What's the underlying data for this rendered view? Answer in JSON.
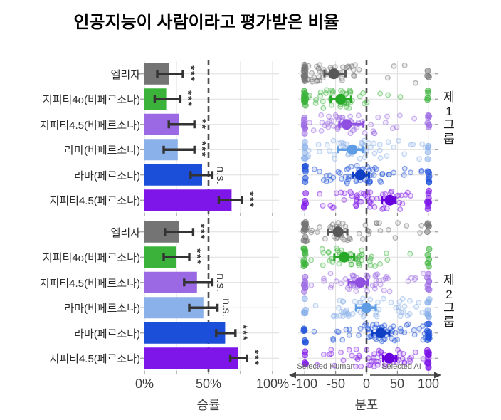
{
  "title": "인공지능이 사람이라고 평가받은 비율",
  "categories": [
    "엘리자",
    "지피티4o(비페르소나)",
    "지피티4.5(비페르소나)",
    "라마(비페르소나)",
    "라마(페르소나)",
    "지피티4.5(페르소나)"
  ],
  "group_labels": [
    "제1그룹",
    "제2그룹"
  ],
  "colors": {
    "bars": [
      "#747474",
      "#3bb33b",
      "#9b69e3",
      "#8ab1ea",
      "#1b4ed9",
      "#7e16e9"
    ],
    "means": [
      "#585858",
      "#27a827",
      "#8f4fe0",
      "#5f9ce6",
      "#0f3fc4",
      "#6800dd"
    ],
    "error": "#333333",
    "grid": "#dedede",
    "dashed": "#4d4d4d",
    "axis_text": "#3f3f3f",
    "tick_mark": "#9a9a9a",
    "arrow": "#444444"
  },
  "chart_data": [
    {
      "type": "bar",
      "title": "",
      "xlabel": "승률",
      "xlim": [
        0,
        100
      ],
      "xticks": [
        {
          "value": 0,
          "label": "0%"
        },
        {
          "value": 50,
          "label": "50%"
        },
        {
          "value": 100,
          "label": "100%"
        }
      ],
      "gridline_values": [
        0,
        25,
        50,
        75,
        100
      ],
      "dashed_line_x": 50,
      "groups": [
        {
          "name": "제1그룹",
          "values": [
            19,
            17,
            27,
            26,
            45,
            68
          ],
          "ci_low": [
            10,
            8,
            19,
            15,
            36,
            58
          ],
          "ci_high": [
            30,
            28,
            39,
            39,
            53,
            76
          ],
          "significance": [
            "***",
            "***",
            "**",
            "***",
            "n.s.",
            "***"
          ]
        },
        {
          "name": "제2그룹",
          "values": [
            27,
            25,
            41,
            46,
            63,
            73
          ],
          "ci_low": [
            16,
            15,
            31,
            35,
            56,
            67
          ],
          "ci_high": [
            38,
            35,
            53,
            57,
            71,
            80
          ],
          "significance": [
            "***",
            "***",
            "n.s.",
            "n.s.",
            "***",
            "***"
          ]
        }
      ]
    },
    {
      "type": "scatter",
      "title": "",
      "xlabel": "분포",
      "xlim": [
        -100,
        100
      ],
      "xticks": [
        {
          "value": -100,
          "label": "-100"
        },
        {
          "value": -50,
          "label": "-50"
        },
        {
          "value": 0,
          "label": "0"
        },
        {
          "value": 50,
          "label": "50"
        },
        {
          "value": 100,
          "label": "100"
        }
      ],
      "gridline_values": [
        -100,
        -50,
        0,
        50,
        100
      ],
      "dashed_line_x": 0,
      "direction_labels": {
        "left": "Selected Human",
        "right": "Selected AI"
      },
      "groups": [
        {
          "name": "제1그룹",
          "means": [
            -53,
            -42,
            -32,
            -23,
            -10,
            38
          ],
          "ci_low": [
            -68,
            -58,
            -44,
            -46,
            -22,
            25
          ],
          "ci_high": [
            -34,
            -25,
            -5,
            -6,
            4,
            47
          ],
          "jitter": [
            {
              "n": 46,
              "center": -55,
              "spread": 50,
              "edge_left": 14,
              "edge_right": 3
            },
            {
              "n": 42,
              "center": -45,
              "spread": 55,
              "edge_left": 12,
              "edge_right": 4
            },
            {
              "n": 50,
              "center": -25,
              "spread": 70,
              "edge_left": 8,
              "edge_right": 6
            },
            {
              "n": 48,
              "center": -20,
              "spread": 70,
              "edge_left": 6,
              "edge_right": 4
            },
            {
              "n": 55,
              "center": -15,
              "spread": 70,
              "edge_left": 7,
              "edge_right": 6
            },
            {
              "n": 55,
              "center": 10,
              "spread": 75,
              "edge_left": 5,
              "edge_right": 9
            }
          ]
        },
        {
          "name": "제2그룹",
          "means": [
            -46,
            -36,
            -10,
            0,
            23,
            37
          ],
          "ci_low": [
            -62,
            -52,
            -29,
            -17,
            9,
            27
          ],
          "ci_high": [
            -31,
            -20,
            2,
            15,
            37,
            48
          ],
          "jitter": [
            {
              "n": 48,
              "center": -50,
              "spread": 55,
              "edge_left": 12,
              "edge_right": 5
            },
            {
              "n": 45,
              "center": -35,
              "spread": 60,
              "edge_left": 10,
              "edge_right": 5
            },
            {
              "n": 52,
              "center": -10,
              "spread": 75,
              "edge_left": 7,
              "edge_right": 7
            },
            {
              "n": 52,
              "center": 0,
              "spread": 75,
              "edge_left": 5,
              "edge_right": 8
            },
            {
              "n": 55,
              "center": 15,
              "spread": 70,
              "edge_left": 6,
              "edge_right": 10
            },
            {
              "n": 55,
              "center": 20,
              "spread": 75,
              "edge_left": 5,
              "edge_right": 14
            }
          ]
        }
      ]
    }
  ]
}
